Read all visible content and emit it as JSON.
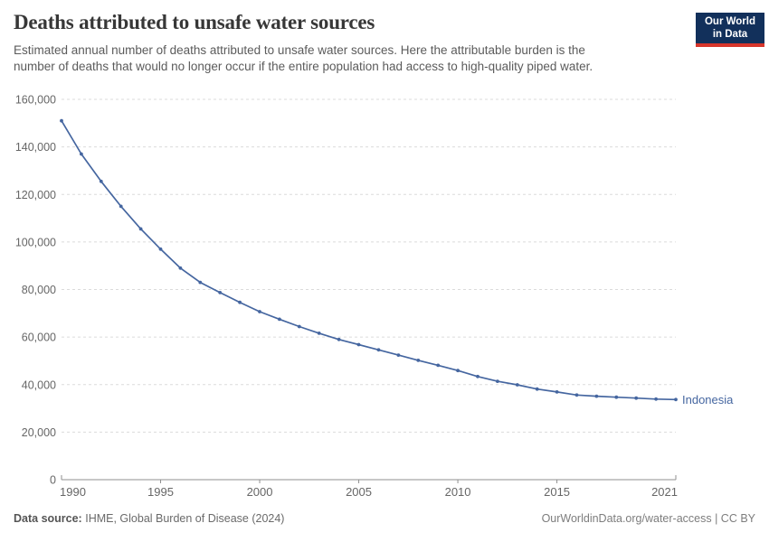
{
  "header": {
    "title": "Deaths attributed to unsafe water sources",
    "subtitle_lines": [
      "Estimated annual number of deaths attributed to unsafe water sources. Here the attributable burden is the",
      "number of deaths that would no longer occur if the entire population had access to high-quality piped water."
    ],
    "logo_line1": "Our World",
    "logo_line2": "in Data"
  },
  "footer": {
    "source_label": "Data source:",
    "source_value": "IHME, Global Burden of Disease (2024)",
    "link": "OurWorldinData.org/water-access | CC BY"
  },
  "chart_data": {
    "type": "line",
    "title": "Deaths attributed to unsafe water sources",
    "xlabel": "",
    "ylabel": "",
    "xlim": [
      1990,
      2021
    ],
    "ylim": [
      0,
      160000
    ],
    "ytick_step": 20000,
    "xticks": [
      1990,
      1995,
      2000,
      2005,
      2010,
      2015,
      2021
    ],
    "grid": "horizontal-dashed",
    "legend_position": "end-of-line-label",
    "series": [
      {
        "name": "Indonesia",
        "x": [
          1990,
          1991,
          1992,
          1993,
          1994,
          1995,
          1996,
          1997,
          1998,
          1999,
          2000,
          2001,
          2002,
          2003,
          2004,
          2005,
          2006,
          2007,
          2008,
          2009,
          2010,
          2011,
          2012,
          2013,
          2014,
          2015,
          2016,
          2017,
          2018,
          2019,
          2020,
          2021
        ],
        "values": [
          151000,
          137000,
          125500,
          115000,
          105500,
          97000,
          89000,
          83000,
          78700,
          74600,
          70700,
          67500,
          64400,
          61600,
          59000,
          56800,
          54600,
          52400,
          50200,
          48100,
          45900,
          43400,
          41400,
          39900,
          38100,
          36900,
          35600,
          35100,
          34700,
          34300,
          33900,
          33700
        ]
      }
    ],
    "colors": {
      "line": "#4566a0",
      "grid": "#dbdbdb",
      "axis": "#8f8f8f",
      "tick_label": "#666666",
      "logo_bg": "#12305b",
      "logo_red": "#d7352b"
    }
  }
}
